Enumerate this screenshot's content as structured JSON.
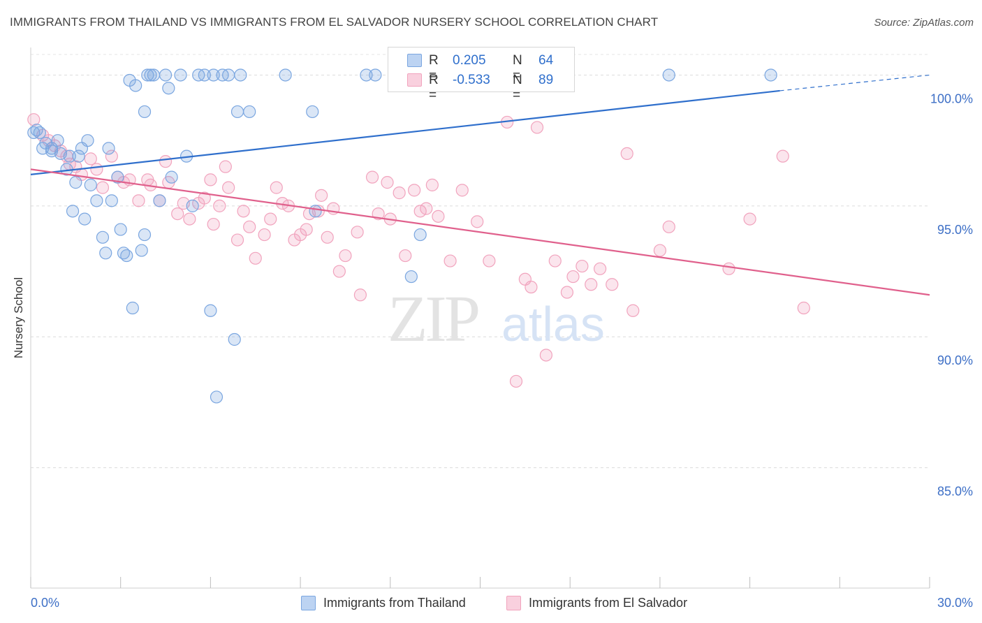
{
  "title": "IMMIGRANTS FROM THAILAND VS IMMIGRANTS FROM EL SALVADOR NURSERY SCHOOL CORRELATION CHART",
  "source": "Source: ZipAtlas.com",
  "watermark": {
    "zip": "ZIP",
    "atlas": "atlas"
  },
  "colors": {
    "thailand": "#7aa6e0",
    "thailand_line": "#2f6fcc",
    "elsalvador": "#f1a3bd",
    "elsalvador_line": "#e0608c",
    "axis_label": "#3d6fc6"
  },
  "stats": {
    "thailand": {
      "r_label": "R =",
      "r_value": "0.205",
      "n_label": "N =",
      "n_value": "64"
    },
    "elsalvador": {
      "r_label": "R =",
      "r_value": "-0.533",
      "n_label": "N =",
      "n_value": "89"
    }
  },
  "legend": {
    "thailand": "Immigrants from Thailand",
    "elsalvador": "Immigrants from El Salvador"
  },
  "chart_data": {
    "type": "scatter",
    "title": "IMMIGRANTS FROM THAILAND VS IMMIGRANTS FROM EL SALVADOR NURSERY SCHOOL CORRELATION CHART",
    "xlabel": "",
    "ylabel": "Nursery School",
    "xlim": [
      0,
      30
    ],
    "ylim": [
      80.4,
      101.0
    ],
    "x_tick_labels": [
      "0.0%",
      "30.0%"
    ],
    "y_ticks": [
      85,
      90,
      95,
      100
    ],
    "y_tick_labels": [
      "85.0%",
      "90.0%",
      "95.0%",
      "100.0%"
    ],
    "grid": true,
    "legend_position": "bottom",
    "series": [
      {
        "name": "Immigrants from Thailand",
        "color": "#7aa6e0",
        "trend": {
          "x": [
            0,
            25.0,
            30.0
          ],
          "y": [
            96.2,
            99.4,
            100.0
          ],
          "dashed_from_x": 25.0
        },
        "points": [
          [
            0.1,
            97.8
          ],
          [
            0.2,
            97.9
          ],
          [
            0.3,
            97.8
          ],
          [
            0.4,
            97.2
          ],
          [
            0.5,
            97.4
          ],
          [
            0.7,
            97.2
          ],
          [
            0.9,
            97.5
          ],
          [
            0.7,
            97.1
          ],
          [
            1.0,
            97.0
          ],
          [
            1.2,
            96.4
          ],
          [
            1.3,
            96.9
          ],
          [
            1.5,
            95.9
          ],
          [
            1.7,
            97.2
          ],
          [
            1.9,
            97.5
          ],
          [
            2.0,
            95.8
          ],
          [
            2.2,
            95.2
          ],
          [
            2.4,
            93.8
          ],
          [
            2.5,
            93.2
          ],
          [
            2.6,
            97.2
          ],
          [
            2.7,
            95.2
          ],
          [
            2.9,
            96.1
          ],
          [
            3.0,
            94.1
          ],
          [
            3.1,
            93.2
          ],
          [
            3.2,
            93.1
          ],
          [
            3.3,
            99.8
          ],
          [
            3.4,
            91.1
          ],
          [
            3.5,
            99.6
          ],
          [
            3.7,
            93.3
          ],
          [
            3.8,
            93.9
          ],
          [
            3.8,
            98.6
          ],
          [
            3.9,
            100.0
          ],
          [
            4.0,
            100.0
          ],
          [
            4.1,
            100.0
          ],
          [
            4.3,
            95.2
          ],
          [
            4.5,
            100.0
          ],
          [
            4.6,
            99.5
          ],
          [
            4.7,
            96.1
          ],
          [
            5.0,
            100.0
          ],
          [
            5.2,
            96.9
          ],
          [
            5.4,
            95.0
          ],
          [
            5.6,
            100.0
          ],
          [
            5.8,
            100.0
          ],
          [
            6.0,
            91.0
          ],
          [
            6.1,
            100.0
          ],
          [
            6.2,
            87.7
          ],
          [
            6.4,
            100.0
          ],
          [
            6.6,
            100.0
          ],
          [
            6.8,
            89.9
          ],
          [
            6.9,
            98.6
          ],
          [
            7.0,
            100.0
          ],
          [
            7.3,
            98.6
          ],
          [
            8.5,
            100.0
          ],
          [
            9.4,
            98.6
          ],
          [
            9.5,
            94.8
          ],
          [
            11.2,
            100.0
          ],
          [
            11.5,
            100.0
          ],
          [
            12.7,
            92.3
          ],
          [
            13.0,
            93.9
          ],
          [
            17.9,
            100.0
          ],
          [
            21.3,
            100.0
          ],
          [
            24.7,
            100.0
          ],
          [
            1.6,
            96.9
          ],
          [
            1.4,
            94.8
          ],
          [
            1.8,
            94.5
          ]
        ]
      },
      {
        "name": "Immigrants from El Salvador",
        "color": "#f1a3bd",
        "trend": {
          "x": [
            0,
            30.0
          ],
          "y": [
            96.4,
            91.6
          ]
        },
        "points": [
          [
            0.1,
            98.3
          ],
          [
            0.4,
            97.7
          ],
          [
            0.6,
            97.5
          ],
          [
            0.8,
            97.3
          ],
          [
            1.0,
            97.1
          ],
          [
            1.2,
            96.9
          ],
          [
            1.3,
            96.6
          ],
          [
            1.5,
            96.5
          ],
          [
            1.7,
            96.2
          ],
          [
            2.0,
            96.8
          ],
          [
            2.2,
            96.4
          ],
          [
            2.4,
            95.7
          ],
          [
            2.7,
            96.9
          ],
          [
            2.9,
            96.1
          ],
          [
            3.1,
            95.9
          ],
          [
            3.3,
            96.0
          ],
          [
            3.6,
            95.2
          ],
          [
            3.9,
            96.0
          ],
          [
            4.0,
            95.8
          ],
          [
            4.3,
            95.2
          ],
          [
            4.5,
            96.7
          ],
          [
            4.6,
            95.9
          ],
          [
            4.9,
            94.7
          ],
          [
            5.1,
            95.1
          ],
          [
            5.3,
            94.5
          ],
          [
            5.6,
            95.1
          ],
          [
            5.8,
            95.3
          ],
          [
            6.0,
            96.0
          ],
          [
            6.1,
            94.3
          ],
          [
            6.3,
            95.0
          ],
          [
            6.5,
            96.5
          ],
          [
            6.6,
            95.7
          ],
          [
            6.9,
            93.7
          ],
          [
            7.1,
            94.8
          ],
          [
            7.3,
            94.2
          ],
          [
            7.5,
            93.0
          ],
          [
            7.8,
            93.9
          ],
          [
            8.0,
            94.5
          ],
          [
            8.2,
            95.7
          ],
          [
            8.4,
            95.1
          ],
          [
            8.6,
            95.0
          ],
          [
            8.8,
            93.7
          ],
          [
            9.0,
            93.9
          ],
          [
            9.2,
            94.1
          ],
          [
            9.3,
            94.7
          ],
          [
            9.6,
            94.8
          ],
          [
            9.7,
            95.4
          ],
          [
            9.9,
            93.8
          ],
          [
            10.1,
            94.9
          ],
          [
            10.3,
            92.5
          ],
          [
            10.5,
            93.1
          ],
          [
            10.9,
            94.0
          ],
          [
            11.0,
            91.6
          ],
          [
            11.4,
            96.1
          ],
          [
            11.6,
            94.7
          ],
          [
            11.9,
            95.9
          ],
          [
            12.0,
            94.5
          ],
          [
            12.3,
            95.5
          ],
          [
            12.5,
            93.1
          ],
          [
            12.8,
            95.6
          ],
          [
            13.0,
            94.8
          ],
          [
            13.2,
            94.9
          ],
          [
            13.4,
            95.8
          ],
          [
            13.6,
            94.6
          ],
          [
            14.0,
            92.9
          ],
          [
            14.4,
            95.6
          ],
          [
            14.9,
            94.4
          ],
          [
            15.3,
            92.9
          ],
          [
            15.9,
            98.2
          ],
          [
            16.2,
            88.3
          ],
          [
            16.5,
            92.2
          ],
          [
            16.7,
            91.9
          ],
          [
            16.9,
            98.0
          ],
          [
            17.2,
            89.3
          ],
          [
            17.5,
            92.9
          ],
          [
            17.9,
            91.7
          ],
          [
            18.1,
            92.3
          ],
          [
            18.4,
            92.7
          ],
          [
            18.7,
            92.0
          ],
          [
            19.0,
            92.6
          ],
          [
            19.4,
            92.0
          ],
          [
            19.9,
            97.0
          ],
          [
            20.1,
            91.0
          ],
          [
            21.0,
            93.3
          ],
          [
            21.3,
            94.2
          ],
          [
            23.3,
            92.6
          ],
          [
            24.0,
            94.5
          ],
          [
            25.1,
            96.9
          ],
          [
            25.8,
            91.1
          ]
        ]
      }
    ]
  }
}
